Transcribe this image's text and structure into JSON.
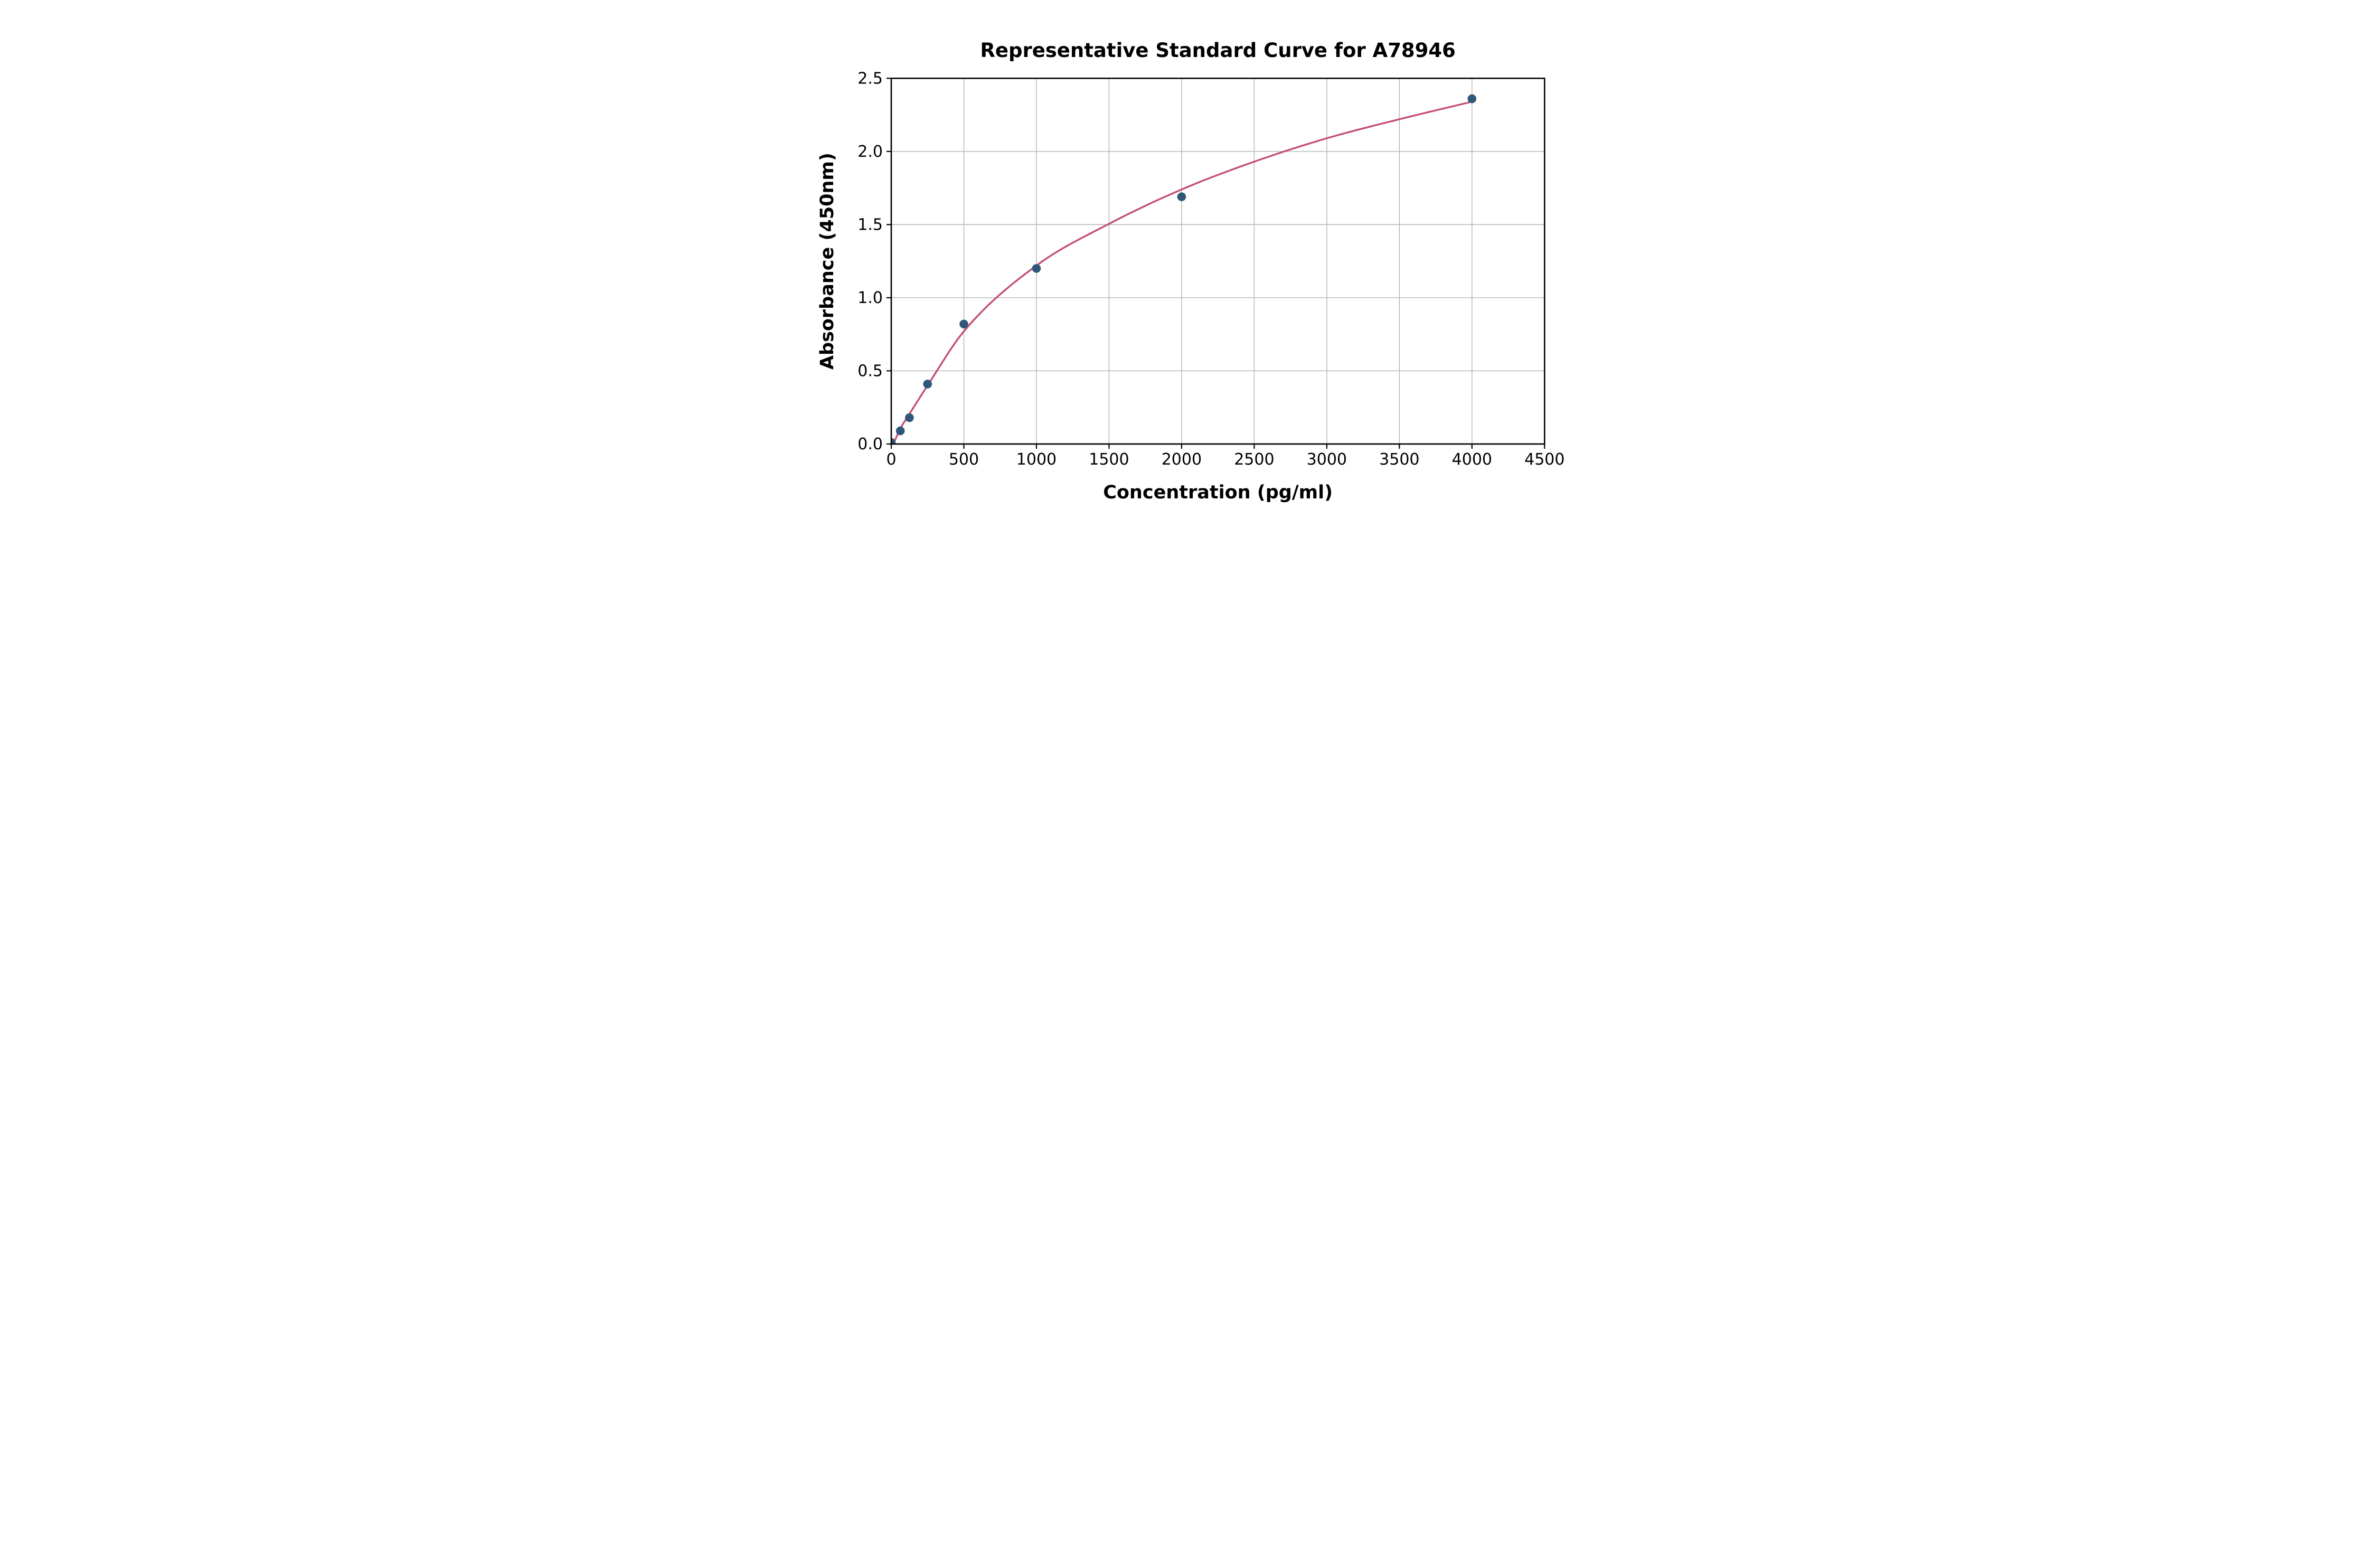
{
  "figure": {
    "background_color": "#ffffff",
    "text_color": "#000000"
  },
  "chart_data": {
    "type": "scatter",
    "title": "Representative Standard Curve for A78946",
    "xlabel": "Concentration (pg/ml)",
    "ylabel": "Absorbance (450nm)",
    "xlim": [
      0,
      4500
    ],
    "ylim": [
      0,
      2.5
    ],
    "x_ticks": [
      0,
      500,
      1000,
      1500,
      2000,
      2500,
      3000,
      3500,
      4000,
      4500
    ],
    "y_ticks": [
      "0.0",
      "0.5",
      "1.0",
      "1.5",
      "2.0",
      "2.5"
    ],
    "grid": true,
    "legend": "none",
    "series": [
      {
        "name": "standard-points",
        "kind": "scatter",
        "marker": "circle",
        "color": "#2F5878",
        "points": [
          {
            "x": 0,
            "y": 0.01
          },
          {
            "x": 62.5,
            "y": 0.09
          },
          {
            "x": 125,
            "y": 0.18
          },
          {
            "x": 250,
            "y": 0.41
          },
          {
            "x": 500,
            "y": 0.82
          },
          {
            "x": 1000,
            "y": 1.2
          },
          {
            "x": 2000,
            "y": 1.69
          },
          {
            "x": 4000,
            "y": 2.36
          }
        ]
      },
      {
        "name": "fitted-curve",
        "kind": "line",
        "color": "#C44E78",
        "anchors": [
          [
            14,
            0.0
          ],
          [
            62.5,
            0.105
          ],
          [
            125,
            0.205
          ],
          [
            250,
            0.4
          ],
          [
            500,
            0.77
          ],
          [
            1000,
            1.22
          ],
          [
            1500,
            1.505
          ],
          [
            2000,
            1.74
          ],
          [
            2500,
            1.93
          ],
          [
            3000,
            2.09
          ],
          [
            3500,
            2.22
          ],
          [
            4000,
            2.34
          ]
        ]
      }
    ],
    "style_colors": {
      "grid_color": "#B3B3B3",
      "axis_color": "#000000",
      "point_color": "#2F5878",
      "curve_color": "#C44E78"
    }
  }
}
